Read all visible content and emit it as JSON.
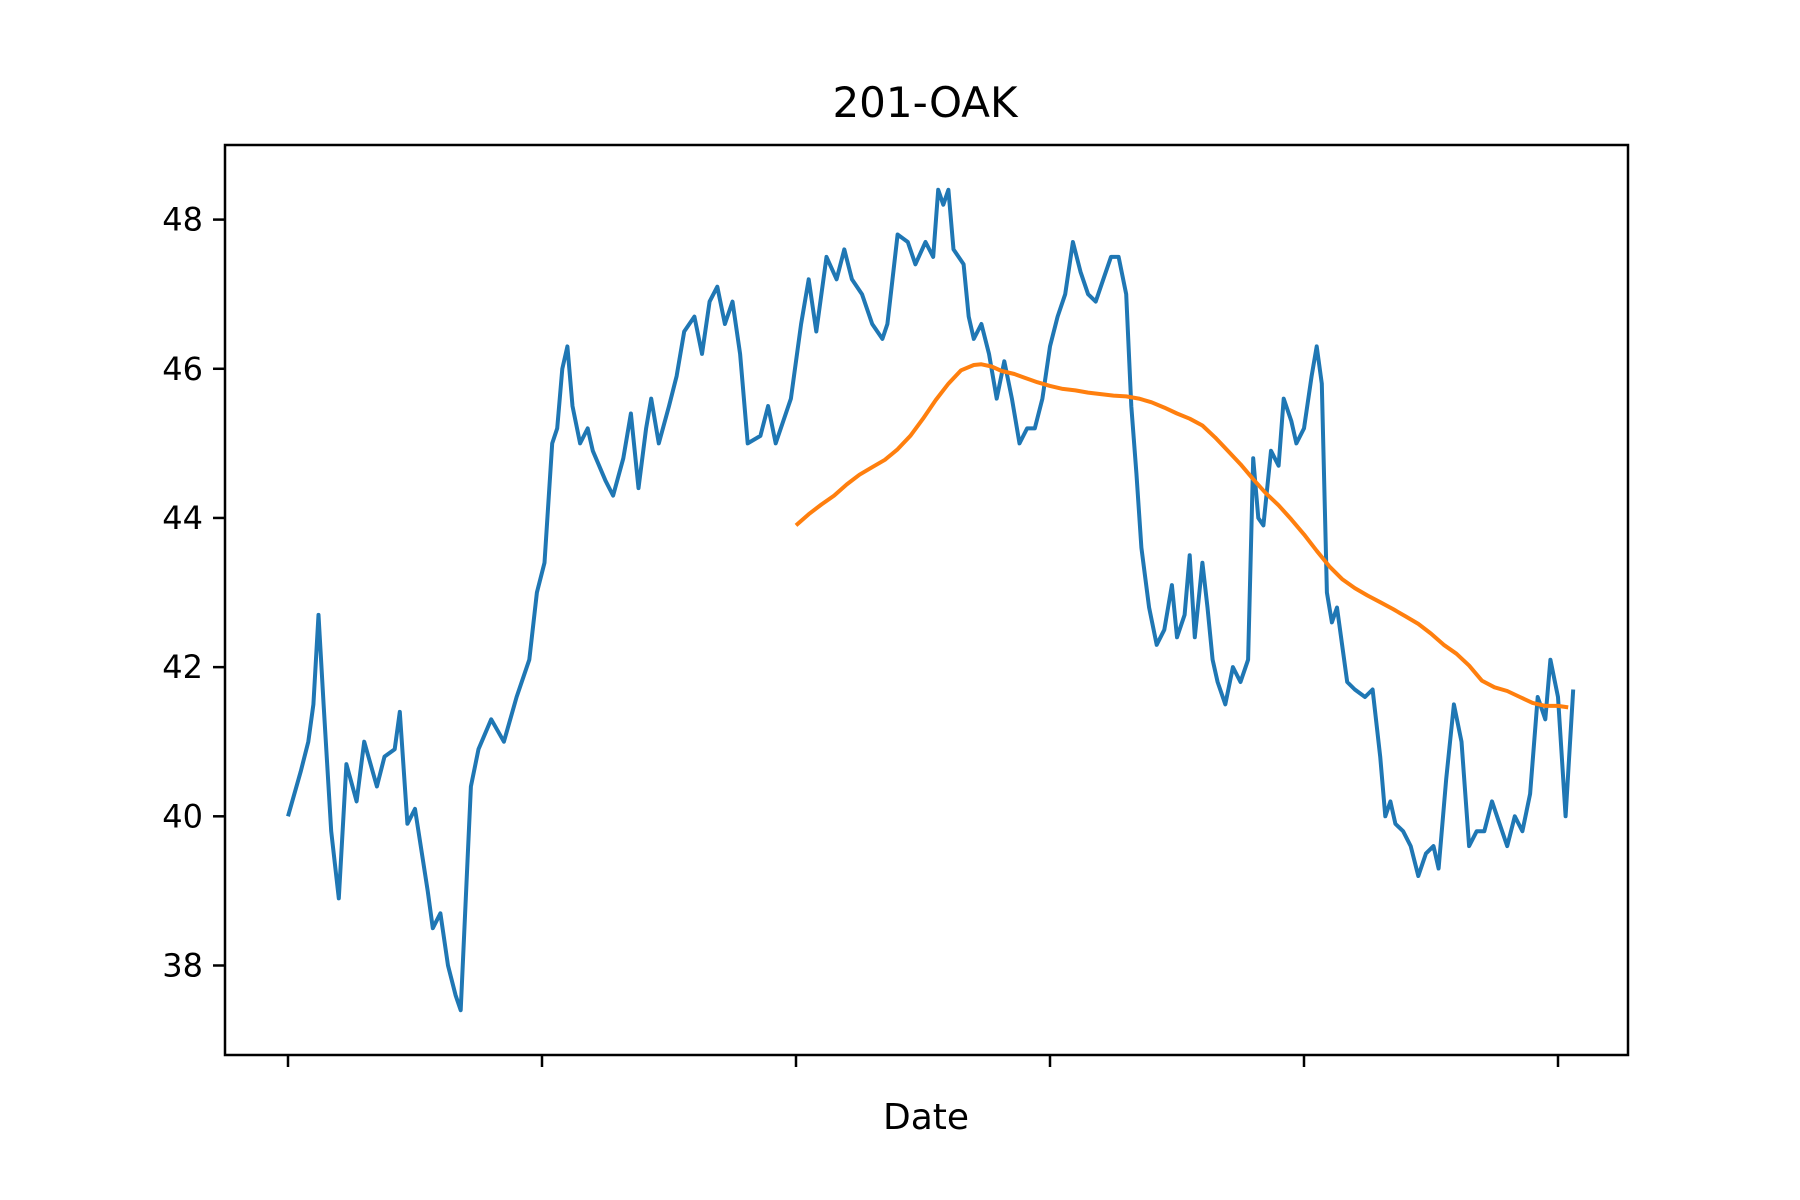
{
  "chart_data": {
    "type": "line",
    "title": "201-OAK",
    "xlabel": "Date",
    "ylabel": "",
    "x_range": [
      0,
      504
    ],
    "x_ticks": [
      0,
      100,
      200,
      300,
      400,
      500
    ],
    "ylim": [
      36.8,
      49.0
    ],
    "y_ticks": [
      38,
      40,
      42,
      44,
      46,
      48
    ],
    "y_tick_labels": [
      "38",
      "40",
      "42",
      "44",
      "46",
      "48"
    ],
    "grid": false,
    "legend": "none",
    "series": [
      {
        "color": "#1f77b4",
        "points": [
          [
            0,
            40.0
          ],
          [
            5,
            40.6
          ],
          [
            8,
            41.0
          ],
          [
            10,
            41.5
          ],
          [
            12,
            42.7
          ],
          [
            14,
            41.5
          ],
          [
            17,
            39.8
          ],
          [
            20,
            38.9
          ],
          [
            23,
            40.7
          ],
          [
            27,
            40.2
          ],
          [
            30,
            41.0
          ],
          [
            35,
            40.4
          ],
          [
            38,
            40.8
          ],
          [
            42,
            40.9
          ],
          [
            44,
            41.4
          ],
          [
            47,
            39.9
          ],
          [
            50,
            40.1
          ],
          [
            55,
            39.0
          ],
          [
            57,
            38.5
          ],
          [
            60,
            38.7
          ],
          [
            63,
            38.0
          ],
          [
            66,
            37.6
          ],
          [
            68,
            37.4
          ],
          [
            70,
            38.9
          ],
          [
            72,
            40.4
          ],
          [
            75,
            40.9
          ],
          [
            80,
            41.3
          ],
          [
            85,
            41.0
          ],
          [
            90,
            41.6
          ],
          [
            95,
            42.1
          ],
          [
            98,
            43.0
          ],
          [
            101,
            43.4
          ],
          [
            104,
            45.0
          ],
          [
            106,
            45.2
          ],
          [
            108,
            46.0
          ],
          [
            110,
            46.3
          ],
          [
            112,
            45.5
          ],
          [
            115,
            45.0
          ],
          [
            118,
            45.2
          ],
          [
            120,
            44.9
          ],
          [
            125,
            44.5
          ],
          [
            128,
            44.3
          ],
          [
            132,
            44.8
          ],
          [
            135,
            45.4
          ],
          [
            138,
            44.4
          ],
          [
            141,
            45.2
          ],
          [
            143,
            45.6
          ],
          [
            146,
            45.0
          ],
          [
            150,
            45.5
          ],
          [
            153,
            45.9
          ],
          [
            156,
            46.5
          ],
          [
            160,
            46.7
          ],
          [
            163,
            46.2
          ],
          [
            166,
            46.9
          ],
          [
            169,
            47.1
          ],
          [
            172,
            46.6
          ],
          [
            175,
            46.9
          ],
          [
            178,
            46.2
          ],
          [
            181,
            45.0
          ],
          [
            186,
            45.1
          ],
          [
            189,
            45.5
          ],
          [
            192,
            45.0
          ],
          [
            195,
            45.3
          ],
          [
            198,
            45.6
          ],
          [
            202,
            46.6
          ],
          [
            205,
            47.2
          ],
          [
            208,
            46.5
          ],
          [
            212,
            47.5
          ],
          [
            216,
            47.2
          ],
          [
            219,
            47.6
          ],
          [
            222,
            47.2
          ],
          [
            226,
            47.0
          ],
          [
            230,
            46.6
          ],
          [
            234,
            46.4
          ],
          [
            236,
            46.6
          ],
          [
            240,
            47.8
          ],
          [
            244,
            47.7
          ],
          [
            247,
            47.4
          ],
          [
            251,
            47.7
          ],
          [
            254,
            47.5
          ],
          [
            256,
            48.4
          ],
          [
            258,
            48.2
          ],
          [
            260,
            48.4
          ],
          [
            262,
            47.6
          ],
          [
            264,
            47.5
          ],
          [
            266,
            47.4
          ],
          [
            268,
            46.7
          ],
          [
            270,
            46.4
          ],
          [
            273,
            46.6
          ],
          [
            276,
            46.2
          ],
          [
            279,
            45.6
          ],
          [
            282,
            46.1
          ],
          [
            285,
            45.6
          ],
          [
            288,
            45.0
          ],
          [
            291,
            45.2
          ],
          [
            294,
            45.2
          ],
          [
            297,
            45.6
          ],
          [
            300,
            46.3
          ],
          [
            303,
            46.7
          ],
          [
            306,
            47.0
          ],
          [
            309,
            47.7
          ],
          [
            312,
            47.3
          ],
          [
            315,
            47.0
          ],
          [
            318,
            46.9
          ],
          [
            321,
            47.2
          ],
          [
            324,
            47.5
          ],
          [
            327,
            47.5
          ],
          [
            330,
            47.0
          ],
          [
            332,
            45.5
          ],
          [
            334,
            44.6
          ],
          [
            336,
            43.6
          ],
          [
            339,
            42.8
          ],
          [
            342,
            42.3
          ],
          [
            345,
            42.5
          ],
          [
            348,
            43.1
          ],
          [
            350,
            42.4
          ],
          [
            353,
            42.7
          ],
          [
            355,
            43.5
          ],
          [
            357,
            42.4
          ],
          [
            360,
            43.4
          ],
          [
            362,
            42.8
          ],
          [
            364,
            42.1
          ],
          [
            366,
            41.8
          ],
          [
            369,
            41.5
          ],
          [
            372,
            42.0
          ],
          [
            375,
            41.8
          ],
          [
            378,
            42.1
          ],
          [
            380,
            44.8
          ],
          [
            382,
            44.0
          ],
          [
            384,
            43.9
          ],
          [
            387,
            44.9
          ],
          [
            390,
            44.7
          ],
          [
            392,
            45.6
          ],
          [
            395,
            45.3
          ],
          [
            397,
            45.0
          ],
          [
            400,
            45.2
          ],
          [
            403,
            45.9
          ],
          [
            405,
            46.3
          ],
          [
            407,
            45.8
          ],
          [
            409,
            43.0
          ],
          [
            411,
            42.6
          ],
          [
            413,
            42.8
          ],
          [
            415,
            42.3
          ],
          [
            417,
            41.8
          ],
          [
            420,
            41.7
          ],
          [
            424,
            41.6
          ],
          [
            427,
            41.7
          ],
          [
            430,
            40.8
          ],
          [
            432,
            40.0
          ],
          [
            434,
            40.2
          ],
          [
            436,
            39.9
          ],
          [
            439,
            39.8
          ],
          [
            442,
            39.6
          ],
          [
            445,
            39.2
          ],
          [
            448,
            39.5
          ],
          [
            451,
            39.6
          ],
          [
            453,
            39.3
          ],
          [
            456,
            40.5
          ],
          [
            459,
            41.5
          ],
          [
            462,
            41.0
          ],
          [
            465,
            39.6
          ],
          [
            468,
            39.8
          ],
          [
            471,
            39.8
          ],
          [
            474,
            40.2
          ],
          [
            477,
            39.9
          ],
          [
            480,
            39.6
          ],
          [
            483,
            40.0
          ],
          [
            486,
            39.8
          ],
          [
            489,
            40.3
          ],
          [
            492,
            41.6
          ],
          [
            495,
            41.3
          ],
          [
            497,
            42.1
          ],
          [
            500,
            41.6
          ],
          [
            503,
            40.0
          ],
          [
            506,
            41.7
          ]
        ]
      },
      {
        "color": "#ff7f0e",
        "points": [
          [
            200,
            43.9
          ],
          [
            205,
            44.05
          ],
          [
            210,
            44.18
          ],
          [
            215,
            44.3
          ],
          [
            220,
            44.45
          ],
          [
            225,
            44.58
          ],
          [
            230,
            44.68
          ],
          [
            235,
            44.78
          ],
          [
            240,
            44.92
          ],
          [
            245,
            45.1
          ],
          [
            250,
            45.33
          ],
          [
            255,
            45.58
          ],
          [
            260,
            45.8
          ],
          [
            265,
            45.98
          ],
          [
            270,
            46.05
          ],
          [
            273,
            46.06
          ],
          [
            277,
            46.03
          ],
          [
            281,
            45.97
          ],
          [
            286,
            45.93
          ],
          [
            290,
            45.88
          ],
          [
            295,
            45.82
          ],
          [
            300,
            45.77
          ],
          [
            305,
            45.73
          ],
          [
            310,
            45.71
          ],
          [
            315,
            45.68
          ],
          [
            320,
            45.66
          ],
          [
            325,
            45.64
          ],
          [
            330,
            45.63
          ],
          [
            335,
            45.6
          ],
          [
            340,
            45.55
          ],
          [
            345,
            45.48
          ],
          [
            350,
            45.4
          ],
          [
            355,
            45.33
          ],
          [
            360,
            45.24
          ],
          [
            365,
            45.08
          ],
          [
            370,
            44.9
          ],
          [
            375,
            44.72
          ],
          [
            380,
            44.52
          ],
          [
            385,
            44.33
          ],
          [
            390,
            44.17
          ],
          [
            395,
            43.98
          ],
          [
            400,
            43.78
          ],
          [
            405,
            43.56
          ],
          [
            410,
            43.35
          ],
          [
            415,
            43.18
          ],
          [
            420,
            43.06
          ],
          [
            425,
            42.96
          ],
          [
            430,
            42.87
          ],
          [
            435,
            42.78
          ],
          [
            440,
            42.68
          ],
          [
            445,
            42.58
          ],
          [
            450,
            42.45
          ],
          [
            455,
            42.3
          ],
          [
            460,
            42.18
          ],
          [
            465,
            42.02
          ],
          [
            470,
            41.82
          ],
          [
            475,
            41.73
          ],
          [
            480,
            41.68
          ],
          [
            485,
            41.6
          ],
          [
            490,
            41.52
          ],
          [
            495,
            41.48
          ],
          [
            500,
            41.48
          ],
          [
            504,
            41.46
          ]
        ]
      }
    ]
  }
}
